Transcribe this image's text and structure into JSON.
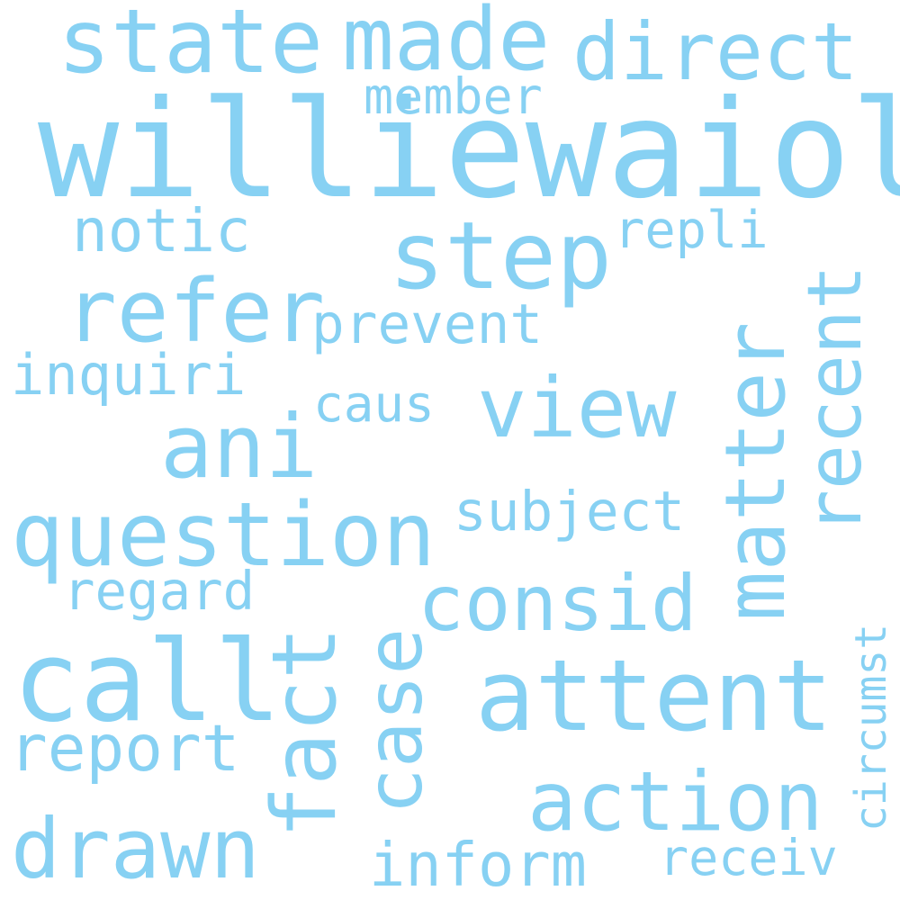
{
  "word_cloud": {
    "text_color": "#87d1f3",
    "background_color": "#ffffff",
    "words": {
      "williewaiola": "williewaiola",
      "state": "state",
      "made": "made",
      "direct": "direct",
      "member": "member",
      "notic": "notic",
      "step": "step",
      "repli": "repli",
      "refer": "refer",
      "prevent": "prevent",
      "inquiri": "inquiri",
      "caus": "caus",
      "view": "view",
      "ani": "ani",
      "matter": "matter",
      "recent": "recent",
      "question": "question",
      "subject": "subject",
      "regard": "regard",
      "consid": "consid",
      "call": "call",
      "fact": "fact",
      "case": "case",
      "attent": "attent",
      "report": "report",
      "circumst": "circumst",
      "action": "action",
      "drawn": "drawn",
      "inform": "inform",
      "receiv": "receiv"
    }
  }
}
